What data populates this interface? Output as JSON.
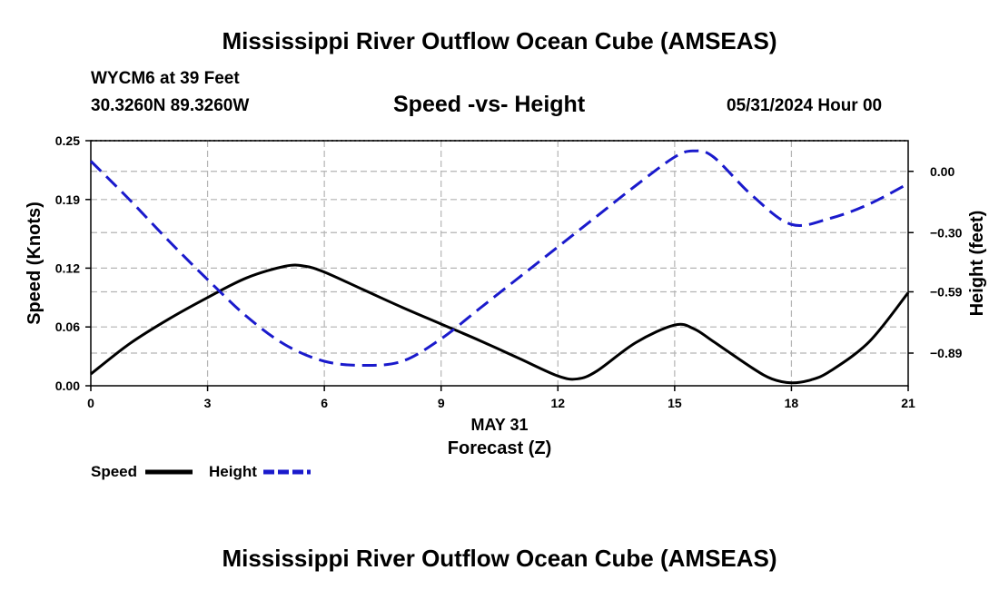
{
  "header": {
    "title": "Mississippi River Outflow Ocean Cube (AMSEAS)",
    "station": "WYCM6 at 39 Feet",
    "coords": "30.3260N  89.3260W",
    "chart_subtitle": "Speed -vs- Height",
    "datetime": "05/31/2024 Hour 00"
  },
  "footer": {
    "title": "Mississippi River Outflow Ocean Cube (AMSEAS)"
  },
  "legend": {
    "speed_label": "Speed",
    "height_label": "Height"
  },
  "colors": {
    "speed": "#000000",
    "height": "#1a1acc",
    "grid": "#b4b4b4"
  },
  "chart_data": {
    "type": "line",
    "title": "Speed -vs- Height",
    "date_label": "MAY 31",
    "xlabel": "Forecast (Z)",
    "ylabel_left": "Speed (Knots)",
    "ylabel_right": "Height (feet)",
    "x_ticks": [
      0,
      3,
      6,
      9,
      12,
      15,
      18,
      21
    ],
    "x_tick_labels": [
      "0",
      "3",
      "6",
      "9",
      "12",
      "15",
      "18",
      "21"
    ],
    "y_left_ticks": [
      0.0,
      0.06,
      0.12,
      0.19,
      0.25
    ],
    "y_left_tick_labels": [
      "0.00",
      "0.06",
      "0.12",
      "0.19",
      "0.25"
    ],
    "y_right_ticks": [
      0.0,
      -0.3,
      -0.59,
      -0.89
    ],
    "y_right_tick_labels": [
      "0.00",
      "−0.30",
      "−0.59",
      "−0.89"
    ],
    "xlim": [
      0,
      21
    ],
    "ylim_left": [
      0,
      0.25
    ],
    "ylim_right": [
      -1.05,
      0.15
    ],
    "series": [
      {
        "name": "Speed",
        "axis": "left",
        "style": "solid",
        "x": [
          0,
          1,
          2,
          3,
          4,
          5,
          5.5,
          6,
          7,
          8,
          9,
          10,
          11,
          12,
          12.5,
          13,
          14,
          15,
          15.5,
          16,
          17,
          17.5,
          18,
          18.5,
          19,
          20,
          21
        ],
        "values": [
          0.012,
          0.043,
          0.068,
          0.09,
          0.11,
          0.122,
          0.122,
          0.116,
          0.098,
          0.08,
          0.063,
          0.046,
          0.028,
          0.01,
          0.007,
          0.015,
          0.044,
          0.062,
          0.058,
          0.045,
          0.018,
          0.007,
          0.003,
          0.006,
          0.015,
          0.045,
          0.095
        ]
      },
      {
        "name": "Height",
        "axis": "right",
        "style": "dashed",
        "x": [
          0,
          1,
          2,
          3,
          4,
          5,
          6,
          7,
          8,
          9,
          10,
          11,
          12,
          13,
          14,
          15,
          15.5,
          16,
          17,
          18,
          19,
          20,
          21
        ],
        "values": [
          0.05,
          -0.14,
          -0.34,
          -0.53,
          -0.71,
          -0.85,
          -0.93,
          -0.95,
          -0.93,
          -0.82,
          -0.67,
          -0.52,
          -0.37,
          -0.22,
          -0.07,
          0.07,
          0.1,
          0.07,
          -0.12,
          -0.26,
          -0.23,
          -0.16,
          -0.06
        ]
      }
    ]
  }
}
